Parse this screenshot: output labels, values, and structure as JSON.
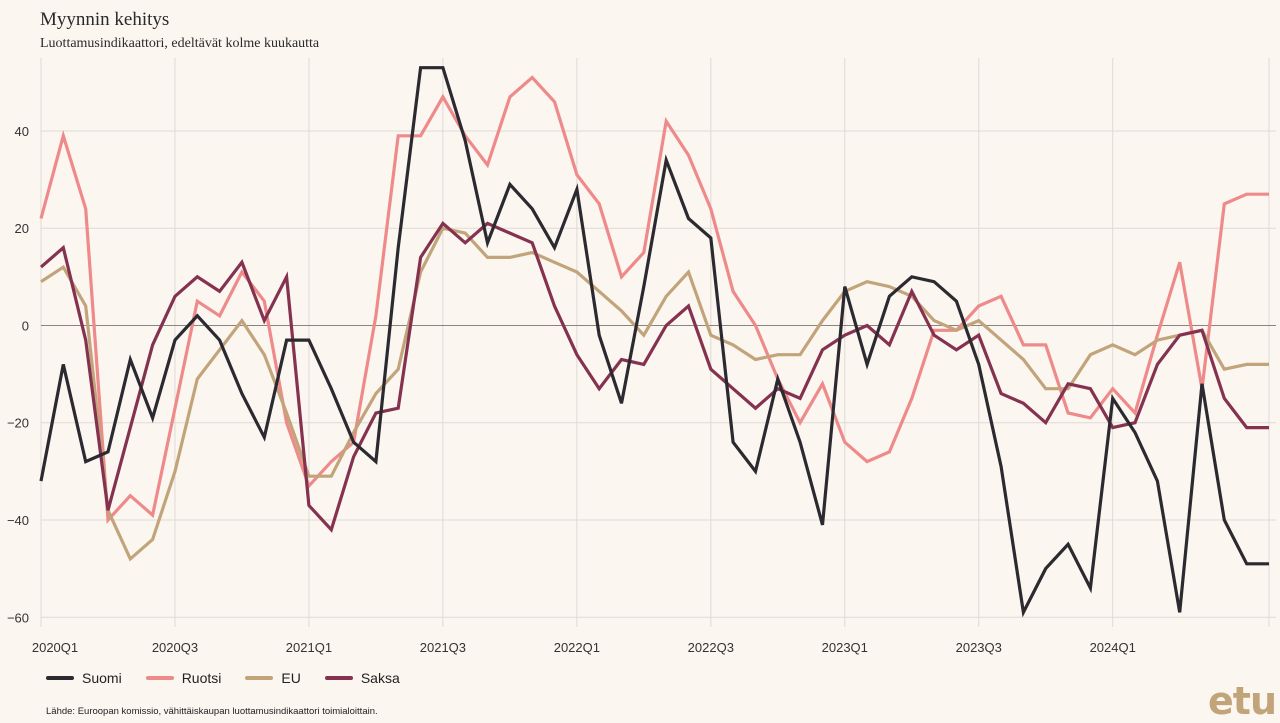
{
  "header": {
    "title": "Myynnin kehitys",
    "subtitle": "Luottamusindikaattori, edeltävät kolme kuukautta"
  },
  "footer": {
    "source": "Lähde: Euroopan komissio, vähittäiskaupan luottamusindikaattori toimialoittain.",
    "logo": "etu"
  },
  "chart_data": {
    "type": "line",
    "title": "Myynnin kehitys",
    "subtitle": "Luottamusindikaattori, edeltävät kolme kuukautta",
    "xlabel": "",
    "ylabel": "",
    "ylim": [
      -62,
      55
    ],
    "yticks": [
      -60,
      -40,
      -20,
      0,
      20,
      40
    ],
    "grid": true,
    "legend": "bottom-left",
    "x_tick_labels": [
      "2020Q1",
      "2020Q3",
      "2021Q1",
      "2021Q3",
      "2022Q1",
      "2022Q3",
      "2023Q1",
      "2023Q3",
      "2024Q1"
    ],
    "x": [
      "2020-01",
      "2020-02",
      "2020-03",
      "2020-04",
      "2020-05",
      "2020-06",
      "2020-07",
      "2020-08",
      "2020-09",
      "2020-10",
      "2020-11",
      "2020-12",
      "2021-01",
      "2021-02",
      "2021-03",
      "2021-04",
      "2021-05",
      "2021-06",
      "2021-07",
      "2021-08",
      "2021-09",
      "2021-10",
      "2021-11",
      "2021-12",
      "2022-01",
      "2022-02",
      "2022-03",
      "2022-04",
      "2022-05",
      "2022-06",
      "2022-07",
      "2022-08",
      "2022-09",
      "2022-10",
      "2022-11",
      "2022-12",
      "2023-01",
      "2023-02",
      "2023-03",
      "2023-04",
      "2023-05",
      "2023-06",
      "2023-07",
      "2023-08",
      "2023-09",
      "2023-10",
      "2023-11",
      "2023-12",
      "2024-01",
      "2024-02",
      "2024-03",
      "2024-04",
      "2024-05",
      "2024-06",
      "2024-07",
      "2024-08"
    ],
    "series": [
      {
        "name": "Suomi",
        "color": "#2b2a30",
        "values": [
          -32,
          -8,
          -28,
          -26,
          -7,
          -19,
          -3,
          2,
          -3,
          -14,
          -23,
          -3,
          -3,
          -13,
          -24,
          -28,
          16,
          53,
          53,
          38,
          17,
          29,
          24,
          16,
          28,
          -2,
          -16,
          8,
          34,
          22,
          18,
          -24,
          -30,
          -11,
          -24,
          -41,
          8,
          -8,
          6,
          10,
          9,
          5,
          -8,
          -29,
          -59,
          -50,
          -45,
          -54,
          -15,
          -22,
          -32,
          -59,
          -12,
          -40,
          -49,
          -49
        ]
      },
      {
        "name": "Ruotsi",
        "color": "#ee8a8a",
        "values": [
          22,
          39,
          24,
          -40,
          -35,
          -39,
          -17,
          5,
          2,
          11,
          5,
          -20,
          -33,
          -28,
          -24,
          2,
          39,
          39,
          47,
          39,
          33,
          47,
          51,
          46,
          31,
          25,
          10,
          15,
          42,
          35,
          24,
          7,
          0,
          -11,
          -20,
          -12,
          -24,
          -28,
          -26,
          -15,
          -1,
          -1,
          4,
          6,
          -4,
          -4,
          -18,
          -19,
          -13,
          -18,
          -2,
          13,
          -13,
          25,
          27,
          27
        ]
      },
      {
        "name": "EU",
        "color": "#c2a47b",
        "values": [
          9,
          12,
          4,
          -38,
          -48,
          -44,
          -30,
          -11,
          -5,
          1,
          -6,
          -18,
          -31,
          -31,
          -22,
          -14,
          -9,
          11,
          20,
          19,
          14,
          14,
          15,
          13,
          11,
          7,
          3,
          -2,
          6,
          11,
          -2,
          -4,
          -7,
          -6,
          -6,
          1,
          7,
          9,
          8,
          6,
          1,
          -1,
          1,
          -3,
          -7,
          -13,
          -13,
          -6,
          -4,
          -6,
          -3,
          -2,
          -1,
          -9,
          -8,
          -8
        ]
      },
      {
        "name": "Saksa",
        "color": "#84324f",
        "values": [
          12,
          16,
          -3,
          -38,
          -21,
          -4,
          6,
          10,
          7,
          13,
          1,
          10,
          -37,
          -42,
          -27,
          -18,
          -17,
          14,
          21,
          17,
          21,
          19,
          17,
          4,
          -6,
          -13,
          -7,
          -8,
          0,
          4,
          -9,
          -13,
          -17,
          -13,
          -15,
          -5,
          -2,
          0,
          -4,
          7,
          -2,
          -5,
          -2,
          -14,
          -16,
          -20,
          -12,
          -13,
          -21,
          -20,
          -8,
          -2,
          -1,
          -15,
          -21,
          -21
        ]
      }
    ]
  }
}
